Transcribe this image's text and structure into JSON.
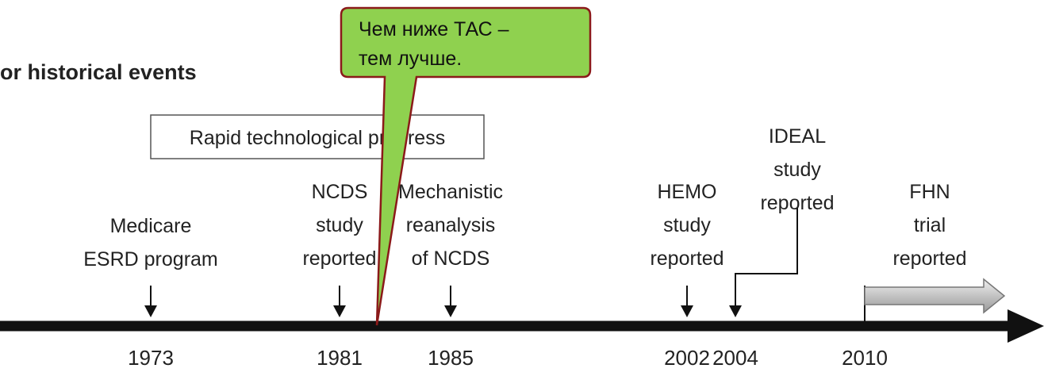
{
  "heading": "or historical events",
  "progress_box": "Rapid technological progress",
  "callout": {
    "lines": [
      "Чем ниже ТАС –",
      "тем лучше."
    ]
  },
  "events": [
    {
      "lines": [
        "Medicare",
        "ESRD program"
      ],
      "year": "1973"
    },
    {
      "lines": [
        "NCDS",
        "study",
        "reported"
      ],
      "year": "1981"
    },
    {
      "lines": [
        "Mechanistic",
        "reanalysis",
        "of NCDS"
      ],
      "year": "1985"
    },
    {
      "lines": [
        "HEMO",
        "study",
        "reported"
      ],
      "year": "2002"
    },
    {
      "lines": [
        "IDEAL",
        "study",
        "reported"
      ],
      "year": "2004"
    },
    {
      "lines": [
        "FHN",
        "trial",
        "reported"
      ],
      "year": "2010"
    }
  ]
}
